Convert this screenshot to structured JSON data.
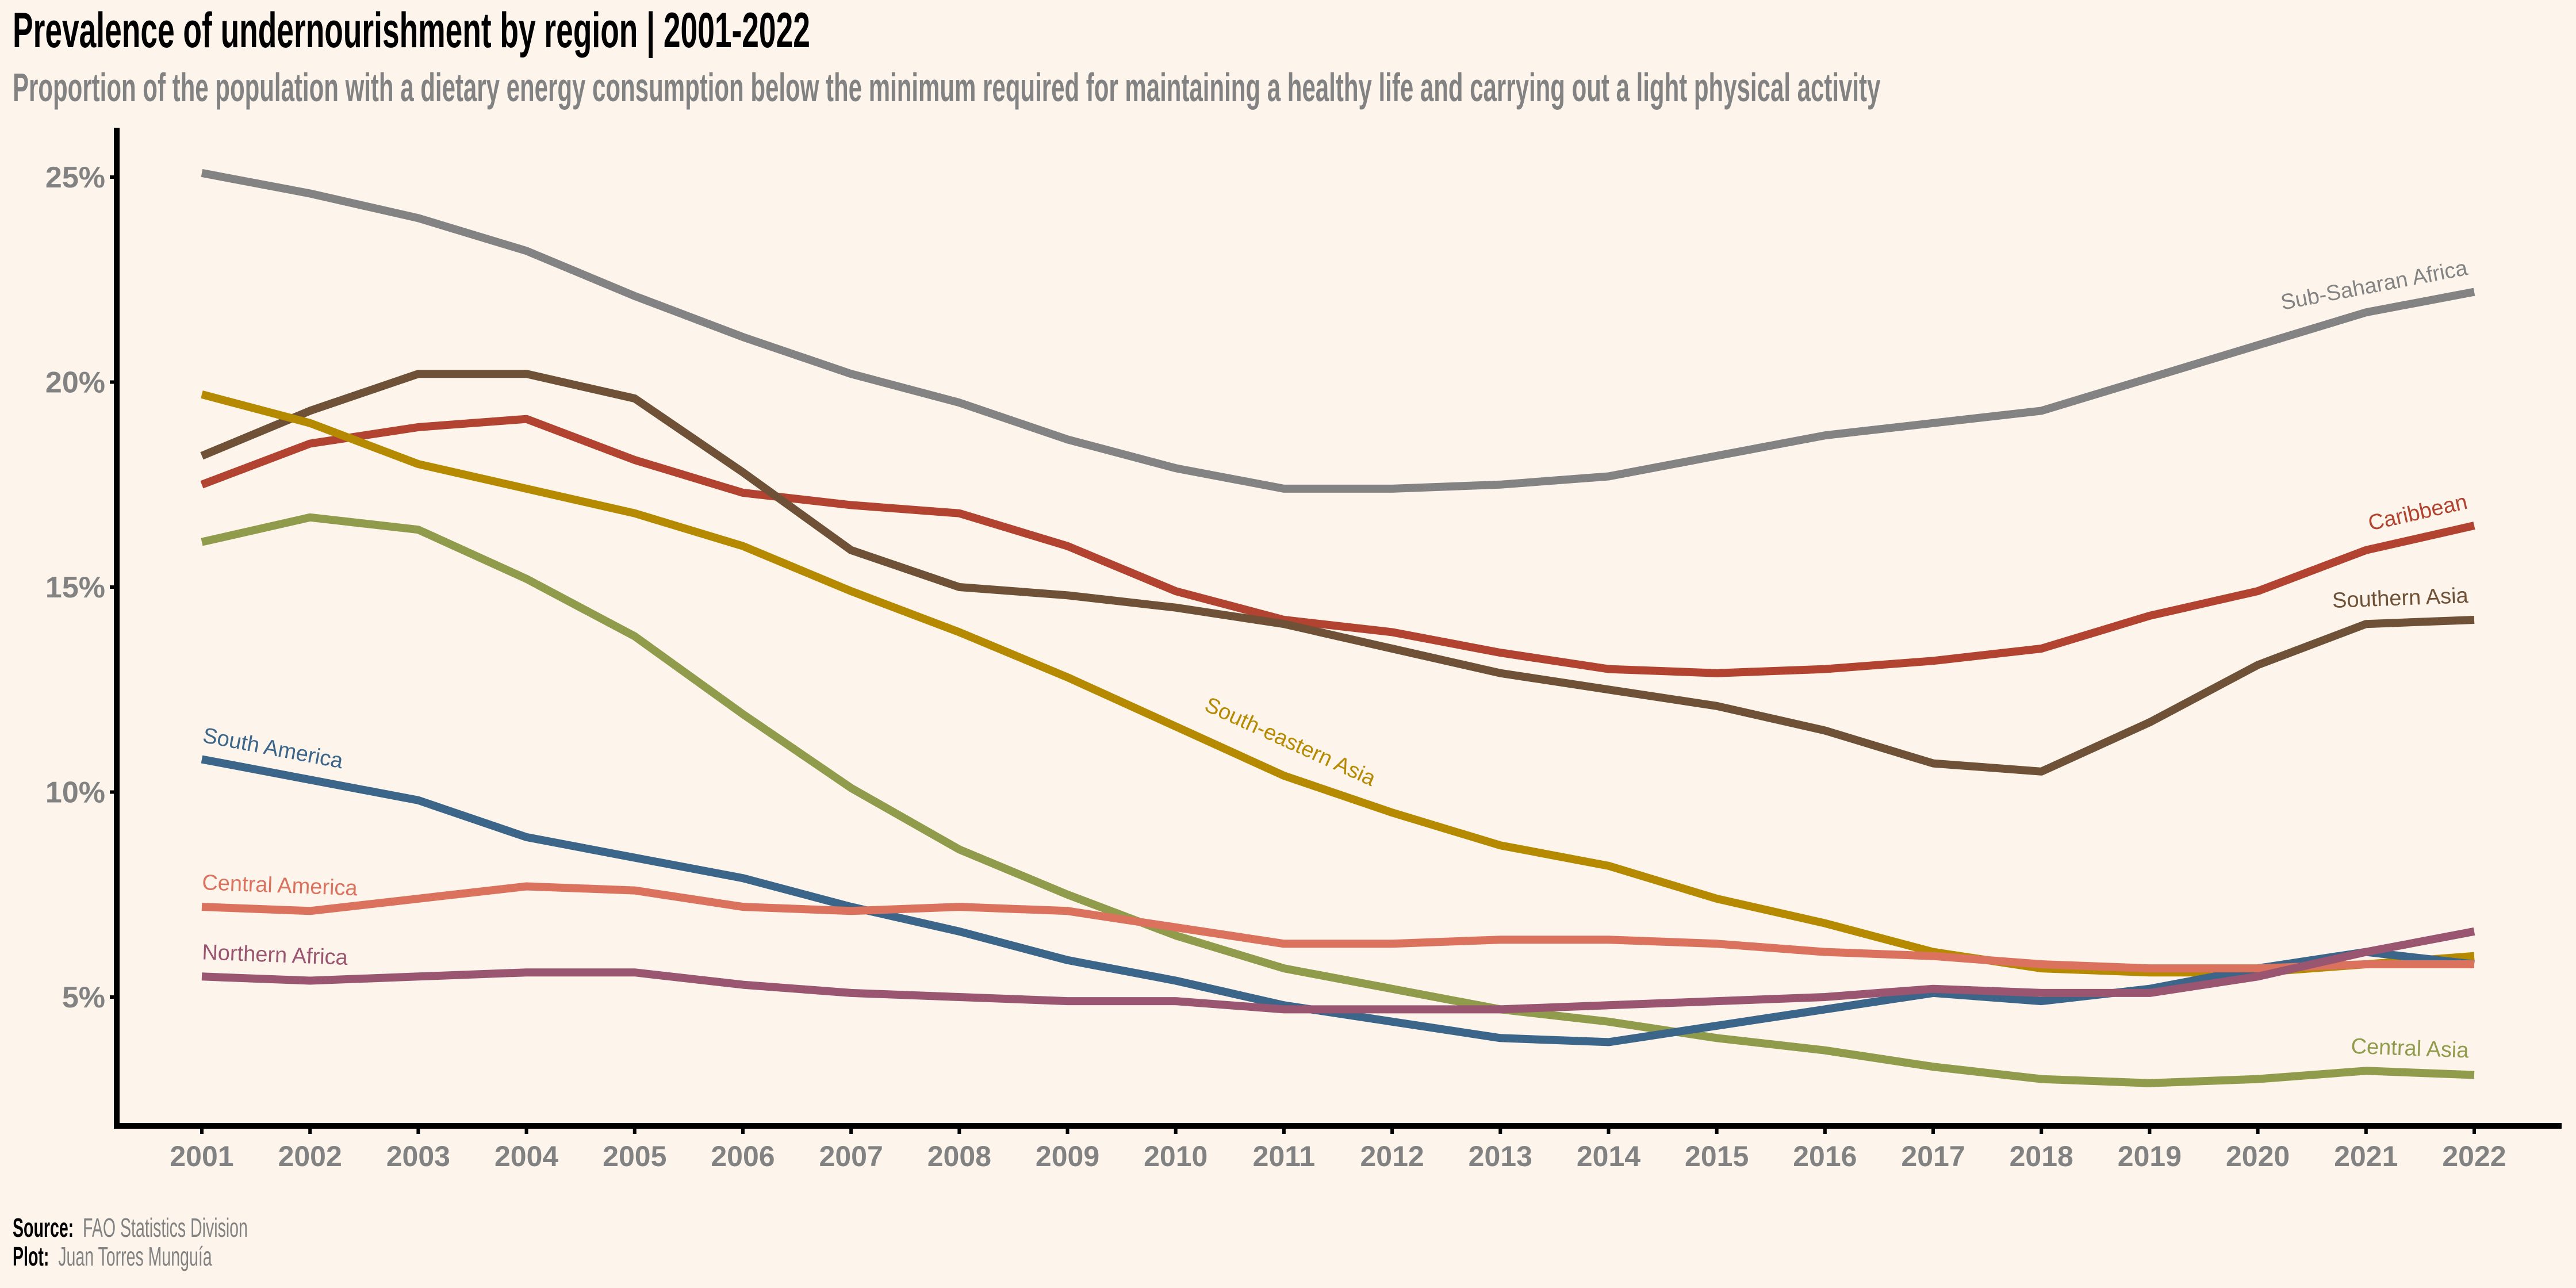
{
  "header": {
    "title": "Prevalence of undernourishment by region | 2001-2022",
    "subtitle": "Proportion of the population with a dietary energy consumption below the minimum required for maintaining a healthy life and carrying out a light physical activity"
  },
  "caption": {
    "source_label": "Source:",
    "source_value": "FAO Statistics Division",
    "plot_label": "Plot:",
    "plot_value": "Juan Torres Munguía"
  },
  "chart_data": {
    "type": "line",
    "title": "Prevalence of undernourishment by region | 2001-2022",
    "xlabel": "",
    "ylabel": "",
    "x": [
      2001,
      2002,
      2003,
      2004,
      2005,
      2006,
      2007,
      2008,
      2009,
      2010,
      2011,
      2012,
      2013,
      2014,
      2015,
      2016,
      2017,
      2018,
      2019,
      2020,
      2021,
      2022
    ],
    "ylim": [
      1.9,
      26.2
    ],
    "yticks": [
      5,
      10,
      15,
      20,
      25
    ],
    "ytick_labels": [
      "5%",
      "10%",
      "15%",
      "20%",
      "25%"
    ],
    "grid": false,
    "legend": "direct-labels",
    "series": [
      {
        "name": "Sub-Saharan Africa",
        "color": "#838383",
        "values": [
          25.1,
          24.6,
          24.0,
          23.2,
          22.1,
          21.1,
          20.2,
          19.5,
          18.6,
          17.9,
          17.4,
          17.4,
          17.5,
          17.7,
          18.2,
          18.7,
          19.0,
          19.3,
          20.1,
          20.9,
          21.7,
          22.2
        ]
      },
      {
        "name": "Caribbean",
        "color": "#b14330",
        "values": [
          17.5,
          18.5,
          18.9,
          19.1,
          18.1,
          17.3,
          17.0,
          16.8,
          16.0,
          14.9,
          14.2,
          13.9,
          13.4,
          13.0,
          12.9,
          13.0,
          13.2,
          13.5,
          14.3,
          14.9,
          15.9,
          16.5
        ]
      },
      {
        "name": "Southern Asia",
        "color": "#6e5136",
        "values": [
          18.2,
          19.3,
          20.2,
          20.2,
          19.6,
          17.8,
          15.9,
          15.0,
          14.8,
          14.5,
          14.1,
          13.5,
          12.9,
          12.5,
          12.1,
          11.5,
          10.7,
          10.5,
          11.7,
          13.1,
          14.1,
          14.2
        ]
      },
      {
        "name": "South-eastern Asia",
        "color": "#b68a00",
        "values": [
          19.7,
          19.0,
          18.0,
          17.4,
          16.8,
          16.0,
          14.9,
          13.9,
          12.8,
          11.6,
          10.4,
          9.5,
          8.7,
          8.2,
          7.4,
          6.8,
          6.1,
          5.7,
          5.6,
          5.6,
          5.8,
          6.0
        ]
      },
      {
        "name": "Central Asia",
        "color": "#909c4c",
        "values": [
          16.1,
          16.7,
          16.4,
          15.2,
          13.8,
          11.9,
          10.1,
          8.6,
          7.5,
          6.5,
          5.7,
          5.2,
          4.7,
          4.4,
          4.0,
          3.7,
          3.3,
          3.0,
          2.9,
          3.0,
          3.2,
          3.1
        ]
      },
      {
        "name": "South America",
        "color": "#3b6589",
        "values": [
          10.8,
          10.3,
          9.8,
          8.9,
          8.4,
          7.9,
          7.2,
          6.6,
          5.9,
          5.4,
          4.8,
          4.4,
          4.0,
          3.9,
          4.3,
          4.7,
          5.1,
          4.9,
          5.2,
          5.7,
          6.1,
          5.8
        ]
      },
      {
        "name": "Central America",
        "color": "#da725e",
        "values": [
          7.2,
          7.1,
          7.4,
          7.7,
          7.6,
          7.2,
          7.1,
          7.2,
          7.1,
          6.7,
          6.3,
          6.3,
          6.4,
          6.4,
          6.3,
          6.1,
          6.0,
          5.8,
          5.7,
          5.7,
          5.8,
          5.8
        ]
      },
      {
        "name": "Northern Africa",
        "color": "#9a5570",
        "values": [
          5.5,
          5.4,
          5.5,
          5.6,
          5.6,
          5.3,
          5.1,
          5.0,
          4.9,
          4.9,
          4.7,
          4.7,
          4.7,
          4.8,
          4.9,
          5.0,
          5.2,
          5.1,
          5.1,
          5.5,
          6.1,
          6.6
        ]
      }
    ],
    "annotations": [
      {
        "series": "Sub-Saharan Africa",
        "text": "Sub-Saharan Africa",
        "anchor": "end"
      },
      {
        "series": "Caribbean",
        "text": "Caribbean",
        "anchor": "end"
      },
      {
        "series": "Southern Asia",
        "text": "Southern Asia",
        "anchor": "end"
      },
      {
        "series": "Central Asia",
        "text": "Central Asia",
        "anchor": "end"
      },
      {
        "series": "South-eastern Asia",
        "text": "South-eastern Asia",
        "anchor": "middle"
      },
      {
        "series": "South America",
        "text": "South America",
        "anchor": "start"
      },
      {
        "series": "Central America",
        "text": "Central America",
        "anchor": "start"
      },
      {
        "series": "Northern Africa",
        "text": "Northern Africa",
        "anchor": "start"
      }
    ]
  }
}
